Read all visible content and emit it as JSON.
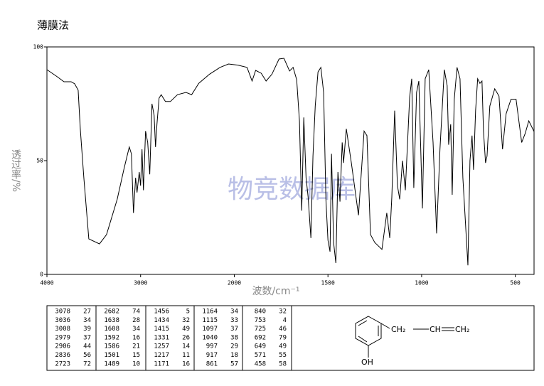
{
  "chart_data": {
    "type": "line",
    "title": "薄膜法",
    "xlabel": "波数/cm⁻¹",
    "ylabel": "透过率/%",
    "xlim": [
      4000,
      400
    ],
    "xticks": [
      4000,
      3000,
      2000,
      1500,
      1000,
      500
    ],
    "ylim": [
      0,
      100
    ],
    "yticks": [
      0,
      50,
      100
    ],
    "color": "#000000",
    "x": [
      4000,
      3894,
      3818,
      3742,
      3705,
      3667,
      3644,
      3606,
      3553,
      3439,
      3364,
      3250,
      3174,
      3121,
      3098,
      3076,
      3053,
      3038,
      3015,
      3000,
      2985,
      2970,
      2947,
      2924,
      2902,
      2879,
      2856,
      2841,
      2826,
      2803,
      2780,
      2735,
      2682,
      2606,
      2515,
      2455,
      2379,
      2265,
      2152,
      2061,
      1981,
      1932,
      1905,
      1886,
      1856,
      1830,
      1799,
      1761,
      1735,
      1705,
      1686,
      1667,
      1652,
      1640,
      1629,
      1617,
      1606,
      1591,
      1580,
      1568,
      1553,
      1538,
      1523,
      1511,
      1500,
      1489,
      1481,
      1470,
      1458,
      1447,
      1436,
      1424,
      1417,
      1402,
      1375,
      1337,
      1307,
      1292,
      1273,
      1250,
      1212,
      1186,
      1170,
      1159,
      1144,
      1129,
      1117,
      1102,
      1087,
      1064,
      1053,
      1042,
      1027,
      1015,
      996,
      981,
      962,
      939,
      920,
      902,
      879,
      864,
      856,
      845,
      837,
      826,
      811,
      795,
      780,
      753,
      742,
      731,
      723,
      712,
      701,
      689,
      678,
      670,
      659,
      651,
      636,
      610,
      587,
      568,
      549,
      523,
      496,
      466,
      447,
      428,
      400
    ],
    "values": [
      90,
      87,
      84.7,
      84.7,
      83.8,
      81,
      64,
      42.5,
      15.6,
      13.4,
      17.5,
      33,
      47,
      56,
      53,
      27,
      42.5,
      36,
      45,
      39,
      55,
      37,
      63,
      58,
      44,
      75,
      70,
      56,
      66,
      77.5,
      79,
      76,
      76,
      79,
      80,
      79,
      84,
      88,
      91,
      92.5,
      92,
      91,
      85,
      89.7,
      88.4,
      85,
      88,
      94.7,
      95,
      89.4,
      91,
      85.6,
      67.5,
      28,
      69,
      42.5,
      34,
      16,
      52,
      74,
      89,
      91,
      80,
      33,
      15,
      10,
      53,
      14,
      5,
      45,
      32,
      58,
      49,
      64,
      49,
      26,
      63,
      61,
      17.5,
      14,
      11,
      27,
      16,
      34,
      72,
      39,
      33,
      50,
      37,
      78,
      86,
      38,
      80,
      85,
      29,
      86,
      90,
      58,
      18,
      55,
      90,
      83,
      57,
      66,
      35,
      77,
      91,
      86,
      42.5,
      4,
      50,
      61,
      46,
      72,
      86,
      84,
      85,
      63,
      49,
      52,
      74,
      81.6,
      78.4,
      55,
      70.6,
      77,
      77,
      58,
      62,
      67.5,
      62.8
    ]
  },
  "watermark": "物竞数据库",
  "peak_table": {
    "columns": [
      [
        [
          3078,
          27
        ],
        [
          3036,
          34
        ],
        [
          3008,
          39
        ],
        [
          2979,
          37
        ],
        [
          2906,
          44
        ],
        [
          2836,
          56
        ],
        [
          2723,
          72
        ]
      ],
      [
        [
          2682,
          74
        ],
        [
          1638,
          28
        ],
        [
          1608,
          34
        ],
        [
          1592,
          16
        ],
        [
          1586,
          21
        ],
        [
          1501,
          15
        ],
        [
          1489,
          10
        ]
      ],
      [
        [
          1456,
          5
        ],
        [
          1434,
          32
        ],
        [
          1415,
          49
        ],
        [
          1331,
          26
        ],
        [
          1257,
          14
        ],
        [
          1217,
          11
        ],
        [
          1171,
          16
        ]
      ],
      [
        [
          1164,
          34
        ],
        [
          1115,
          33
        ],
        [
          1097,
          37
        ],
        [
          1040,
          38
        ],
        [
          997,
          29
        ],
        [
          917,
          18
        ],
        [
          861,
          57
        ]
      ],
      [
        [
          840,
          32
        ],
        [
          753,
          4
        ],
        [
          725,
          46
        ],
        [
          692,
          79
        ],
        [
          649,
          49
        ],
        [
          571,
          55
        ],
        [
          458,
          58
        ]
      ]
    ]
  },
  "structure": {
    "labels": [
      "CH₂",
      "CH",
      "CH₂",
      "OH"
    ]
  }
}
